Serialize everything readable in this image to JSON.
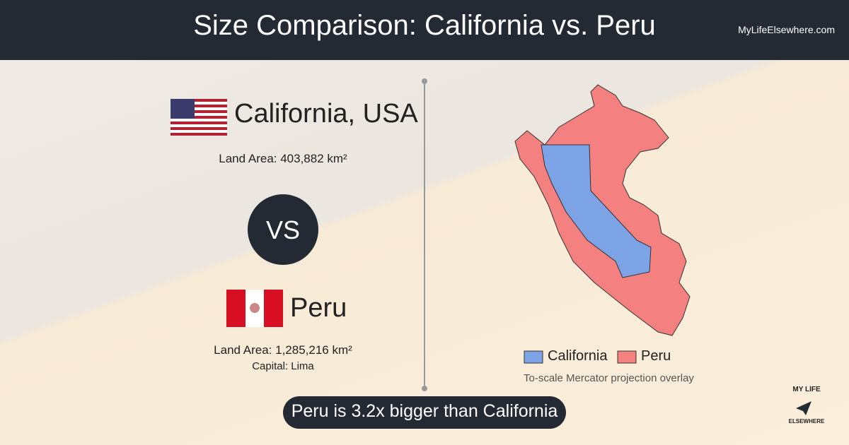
{
  "header": {
    "title": "Size Comparison: California vs. Peru",
    "site": "MyLifeElsewhere.com"
  },
  "left": {
    "place1": {
      "name": "California, USA",
      "area": "Land Area: 403,882 km²"
    },
    "vs": "VS",
    "place2": {
      "name": "Peru",
      "area": "Land Area: 1,285,216 km²",
      "capital": "Capital: Lima"
    }
  },
  "map": {
    "legend": [
      "California",
      "Peru"
    ],
    "note": "To-scale Mercator projection overlay"
  },
  "footer": {
    "summary": "Peru is 3.2x bigger than California"
  },
  "logo": {
    "top": "MY LIFE",
    "bottom": "ELSEWHERE"
  }
}
